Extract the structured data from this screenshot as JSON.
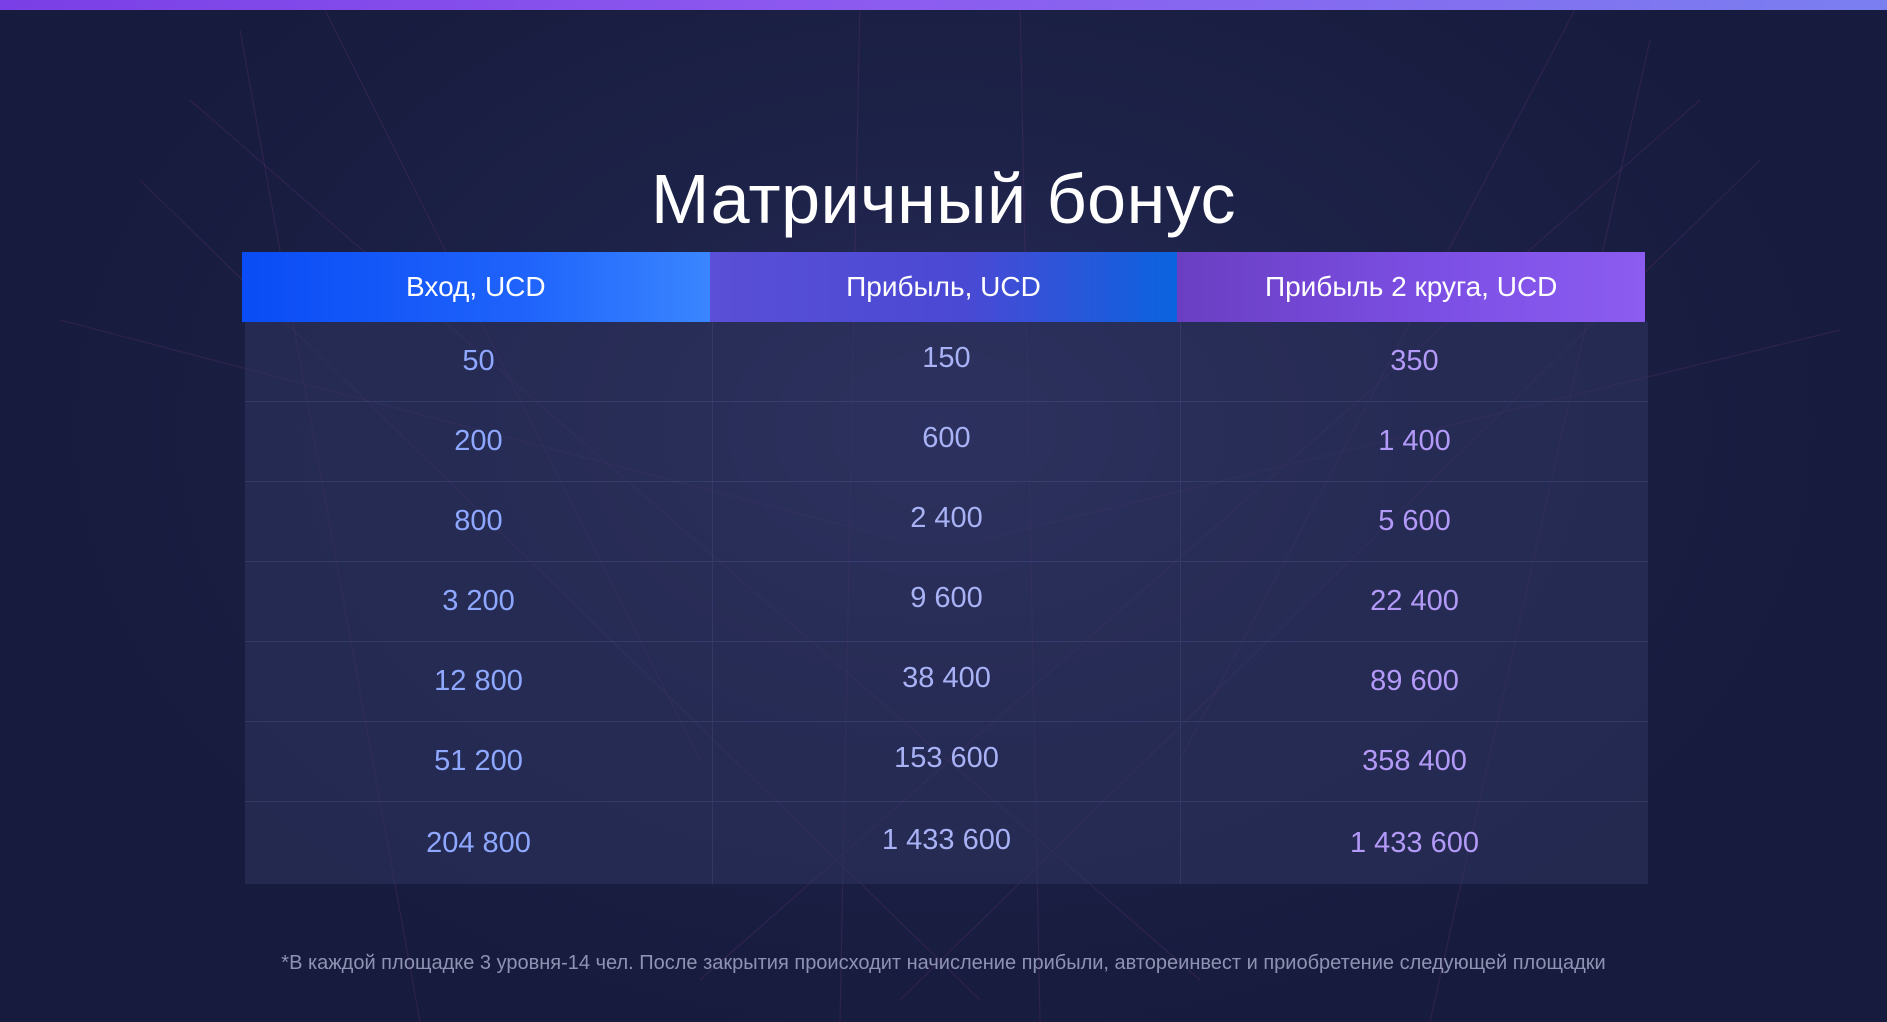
{
  "page": {
    "title": "Матричный бонус",
    "footnote": "*В каждой площадке 3 уровня-14 чел. После закрытия происходит начисление прибыли, автореинвест и приобретение следующей площадки"
  },
  "table": {
    "headers": [
      "Вход, UCD",
      "Прибыль, UCD",
      "Прибыль 2 круга, UCD"
    ],
    "rows": [
      [
        "50",
        "150",
        "350"
      ],
      [
        "200",
        "600",
        "1 400"
      ],
      [
        "800",
        "2 400",
        "5 600"
      ],
      [
        "3 200",
        "9 600",
        "22 400"
      ],
      [
        "12 800",
        "38 400",
        "89 600"
      ],
      [
        "51 200",
        "153 600",
        "358 400"
      ],
      [
        "204 800",
        "1 433 600",
        "1 433 600"
      ]
    ]
  },
  "colors": {
    "background": "#171c3f",
    "accent_top_bar": "#7a3fe6",
    "header_col1": "#1f63fb",
    "header_col2": "#4a49d4",
    "header_col3": "#7c4fe4",
    "cell_col1_text": "#8fa8ff",
    "cell_col2_text": "#a8b2f5",
    "cell_col3_text": "#b49af8"
  }
}
